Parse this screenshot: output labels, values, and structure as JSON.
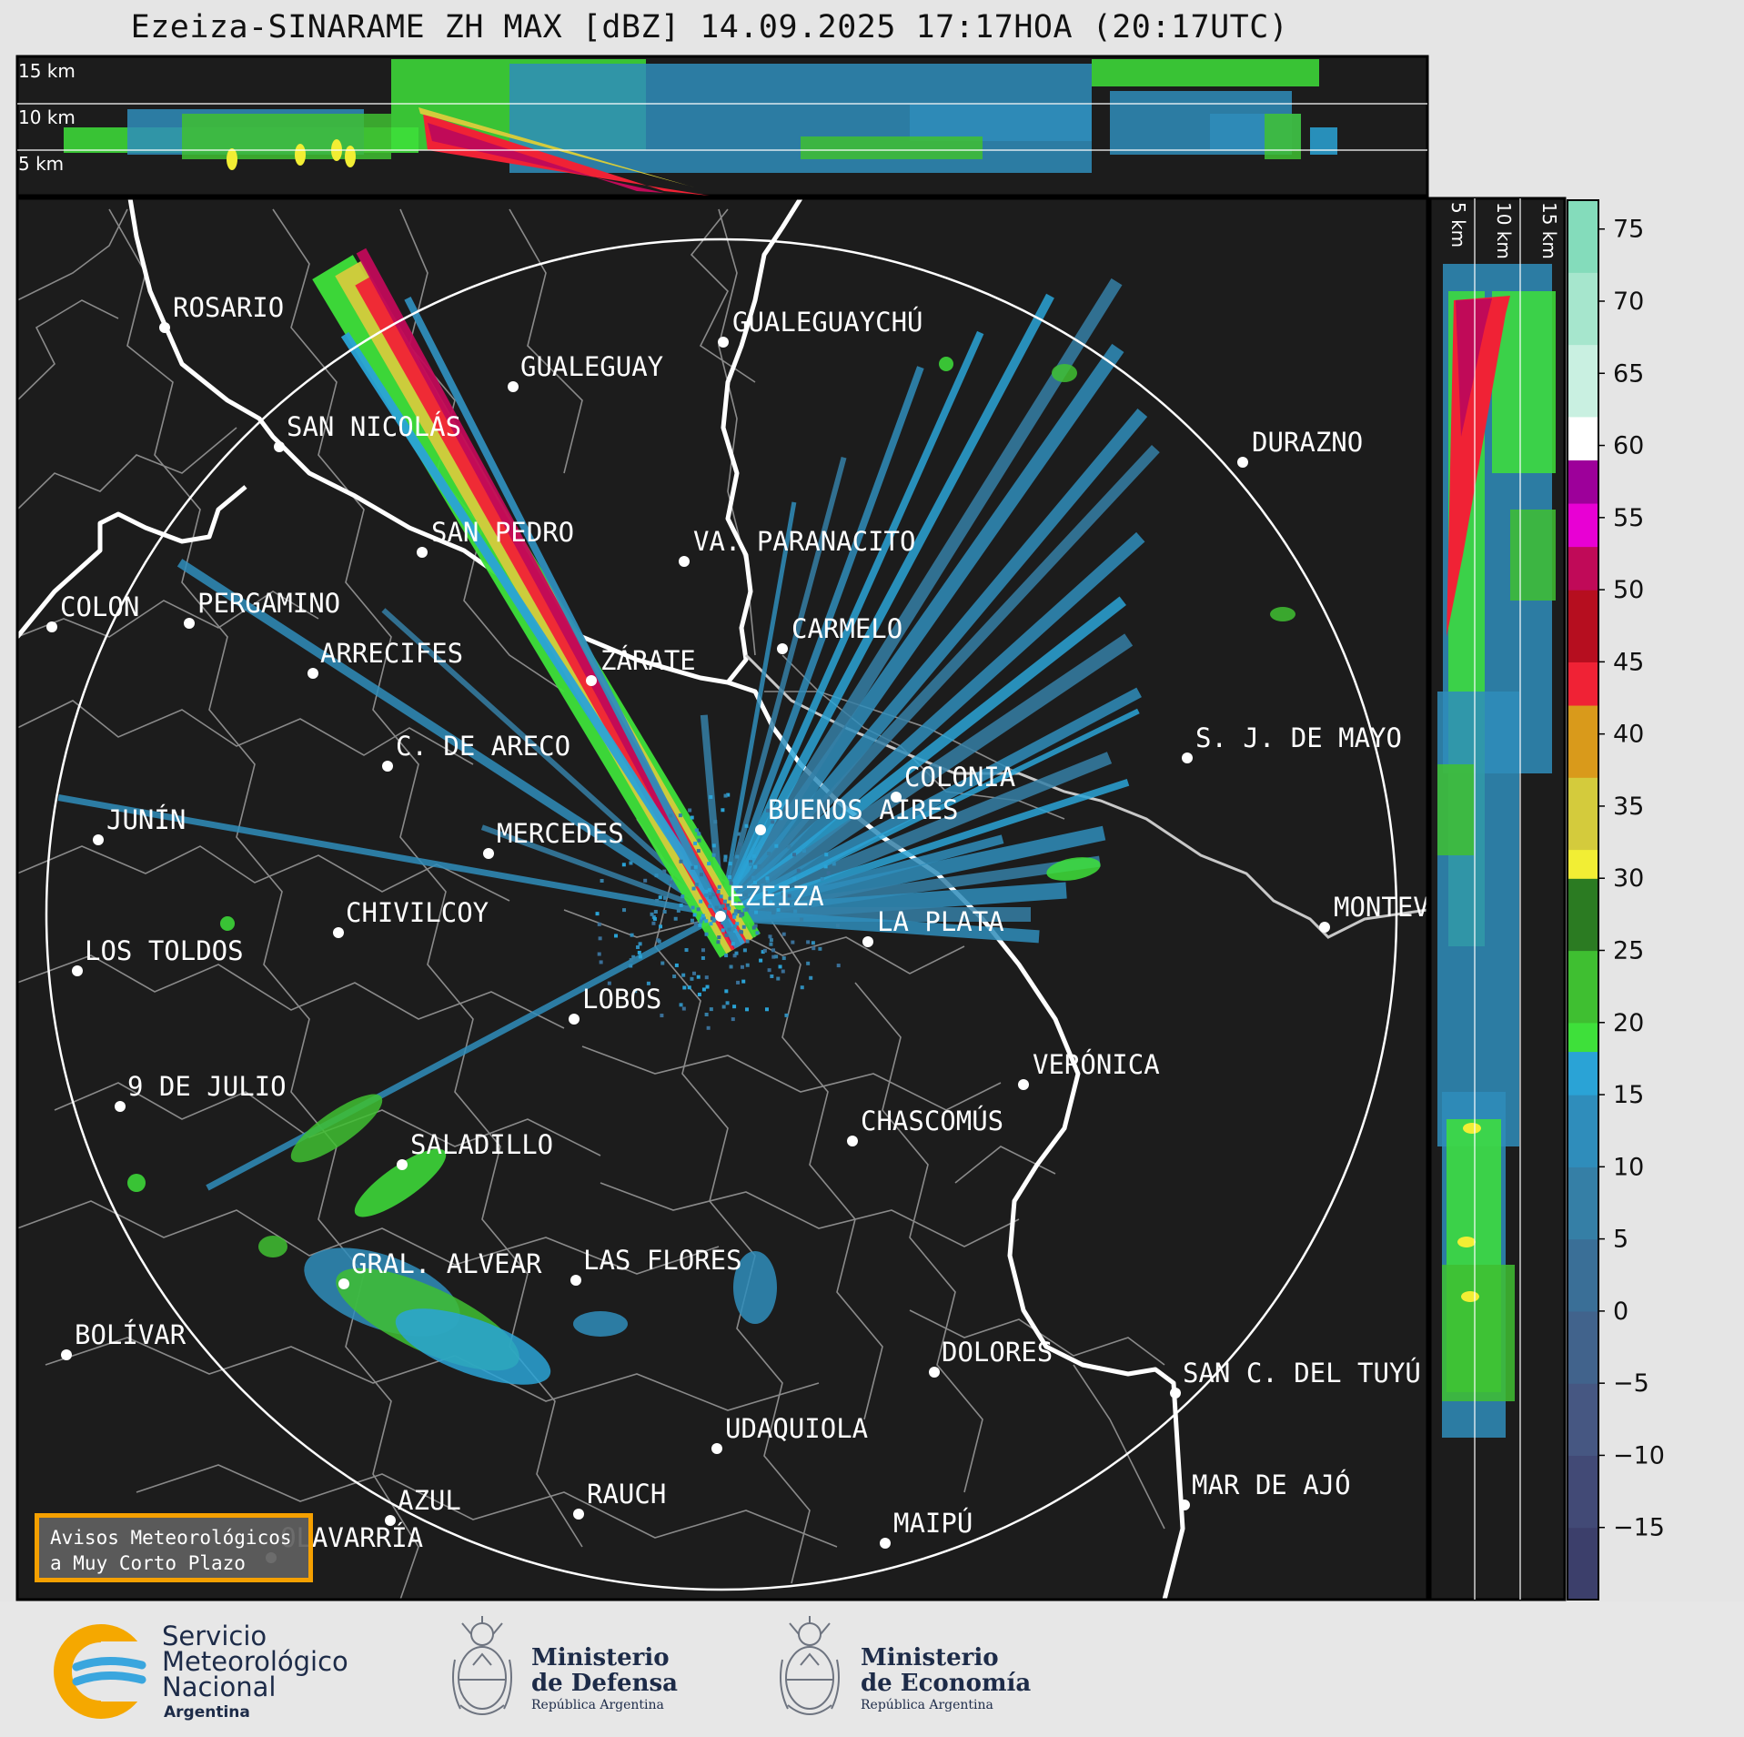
{
  "title": "Ezeiza-SINARAME ZH MAX [dBZ] 14.09.2025 17:17HOA (20:17UTC)",
  "colors": {
    "map_background": "#1c1c1c",
    "coastline": "#ffffff",
    "borders": "#8a8a8a",
    "range_ring": "#ffffff",
    "avisos_border": "#f5a000"
  },
  "top_section": {
    "altitude_labels": [
      "15 km",
      "10 km",
      "5 km"
    ]
  },
  "side_section": {
    "altitude_labels": [
      "5 km",
      "10 km",
      "15 km"
    ]
  },
  "colorbar": {
    "unit": "dBZ",
    "ticks": [
      "75",
      "70",
      "65",
      "60",
      "55",
      "50",
      "45",
      "40",
      "35",
      "30",
      "25",
      "20",
      "15",
      "10",
      "5",
      "0",
      "−5",
      "−10",
      "−15"
    ],
    "min": -20,
    "max": 77,
    "stops": [
      {
        "from": -20,
        "to": -15,
        "color": "#3c3f6b"
      },
      {
        "from": -15,
        "to": -10,
        "color": "#424a76"
      },
      {
        "from": -10,
        "to": -5,
        "color": "#465782"
      },
      {
        "from": -5,
        "to": 0,
        "color": "#41638c"
      },
      {
        "from": 0,
        "to": 5,
        "color": "#3a6f97"
      },
      {
        "from": 5,
        "to": 10,
        "color": "#357fa6"
      },
      {
        "from": 10,
        "to": 15,
        "color": "#2f8dbb"
      },
      {
        "from": 15,
        "to": 18,
        "color": "#2aa3d6"
      },
      {
        "from": 18,
        "to": 20,
        "color": "#3ee03a"
      },
      {
        "from": 20,
        "to": 25,
        "color": "#3fbf31"
      },
      {
        "from": 25,
        "to": 30,
        "color": "#2b7b22"
      },
      {
        "from": 30,
        "to": 32,
        "color": "#f2ee34"
      },
      {
        "from": 32,
        "to": 37,
        "color": "#d4cb3c"
      },
      {
        "from": 37,
        "to": 42,
        "color": "#d99a1b"
      },
      {
        "from": 42,
        "to": 45,
        "color": "#f02235"
      },
      {
        "from": 45,
        "to": 50,
        "color": "#b60e1f"
      },
      {
        "from": 50,
        "to": 53,
        "color": "#c00a58"
      },
      {
        "from": 53,
        "to": 56,
        "color": "#e800d4"
      },
      {
        "from": 56,
        "to": 59,
        "color": "#9d009a"
      },
      {
        "from": 59,
        "to": 62,
        "color": "#ffffff"
      },
      {
        "from": 62,
        "to": 67,
        "color": "#c9f0e1"
      },
      {
        "from": 67,
        "to": 72,
        "color": "#a6e6cd"
      },
      {
        "from": 72,
        "to": 77,
        "color": "#84dcbb"
      }
    ]
  },
  "cities": [
    {
      "name": "ROSARIO"
    },
    {
      "name": "GUALEGUAYCHÚ"
    },
    {
      "name": "GUALEGUAY"
    },
    {
      "name": "SAN NICOLÁS"
    },
    {
      "name": "DURAZNO"
    },
    {
      "name": "SAN PEDRO"
    },
    {
      "name": "VA. PARANACITO"
    },
    {
      "name": "COLON"
    },
    {
      "name": "PERGAMINO"
    },
    {
      "name": "CARMELO"
    },
    {
      "name": "ARRECIFES"
    },
    {
      "name": "ZÁRATE"
    },
    {
      "name": "S. J. DE MAYO"
    },
    {
      "name": "C. DE ARECO"
    },
    {
      "name": "COLONIA"
    },
    {
      "name": "JUNÍN"
    },
    {
      "name": "BUENOS AIRES"
    },
    {
      "name": "MERCEDES"
    },
    {
      "name": "MONTEVIDEO"
    },
    {
      "name": "EZEIZA"
    },
    {
      "name": "CHIVILCOY"
    },
    {
      "name": "LA PLATA"
    },
    {
      "name": "LOS TOLDOS"
    },
    {
      "name": "LOBOS"
    },
    {
      "name": "VERÓNICA"
    },
    {
      "name": "9 DE JULIO"
    },
    {
      "name": "CHASCOMÚS"
    },
    {
      "name": "SALADILLO"
    },
    {
      "name": "GRAL. ALVEAR"
    },
    {
      "name": "LAS FLORES"
    },
    {
      "name": "BOLÍVAR"
    },
    {
      "name": "DOLORES"
    },
    {
      "name": "SAN C. DEL TUYÚ"
    },
    {
      "name": "UDAQUIOLA"
    },
    {
      "name": "MAR DE AJÓ"
    },
    {
      "name": "AZUL"
    },
    {
      "name": "RAUCH"
    },
    {
      "name": "MAIPÚ"
    },
    {
      "name": "OLAVARRÍA"
    }
  ],
  "avisos": {
    "line1": "Avisos Meteorológicos",
    "line2": "a Muy Corto Plazo"
  },
  "logos": {
    "smn": {
      "line1": "Servicio",
      "line2": "Meteorológico",
      "line3": "Nacional",
      "line4": "Argentina"
    },
    "defensa": {
      "line1": "Ministerio",
      "line2": "de Defensa",
      "line3": "República Argentina"
    },
    "economia": {
      "line1": "Ministerio",
      "line2": "de Economía",
      "line3": "República Argentina"
    }
  }
}
